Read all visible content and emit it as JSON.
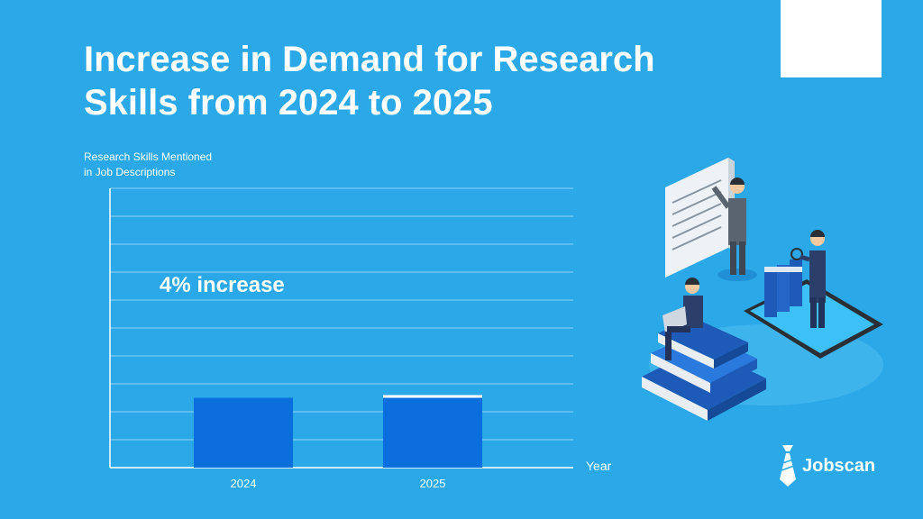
{
  "title_lines": [
    "Increase in Demand for Research",
    "Skills from 2024 to 2025"
  ],
  "ylabel_lines": [
    "Research Skills Mentioned",
    "in Job Descriptions"
  ],
  "annotation": "4% increase",
  "brand": "Jobscan",
  "colors": {
    "background": "#2ba8e8",
    "bar": "#0a6fdc",
    "increase_cap": "#ffffff",
    "text": "#ffffff"
  },
  "chart_data": {
    "type": "bar",
    "categories": [
      "2024",
      "2025"
    ],
    "values": [
      2.5,
      2.6
    ],
    "xlabel": "Year",
    "ylabel": "Research Skills Mentioned in Job Descriptions",
    "ylim": [
      0,
      10
    ],
    "grid": true,
    "annotation": "4% increase"
  }
}
